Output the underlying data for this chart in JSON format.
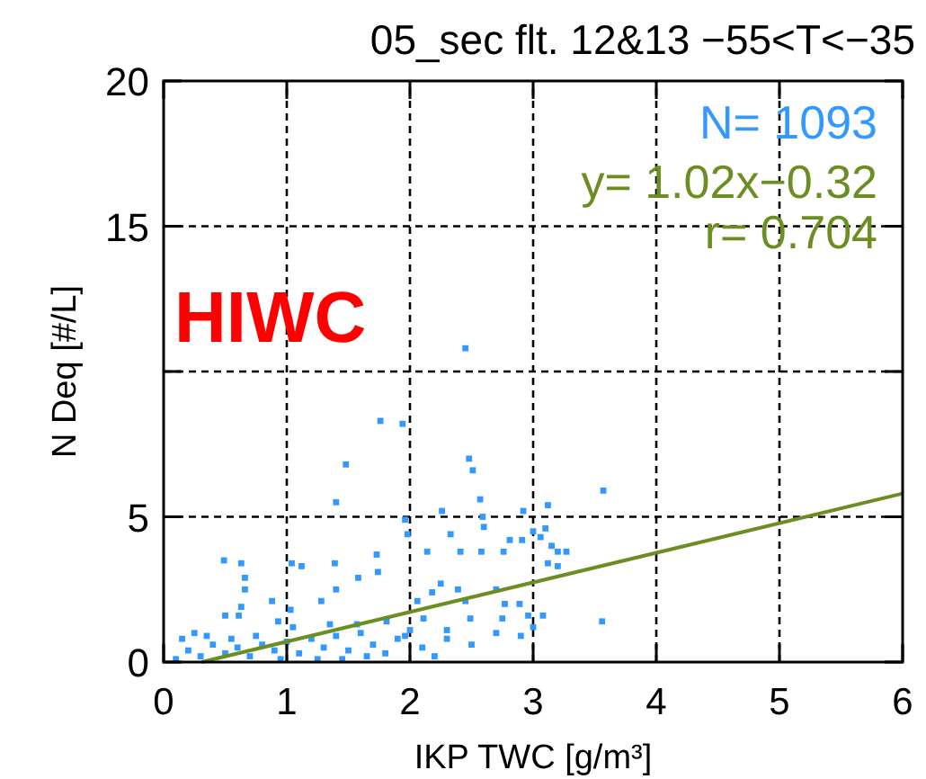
{
  "chart_data": {
    "type": "scatter",
    "title": "05_sec flt. 12&13 −55<T<−35",
    "xlabel": "IKP TWC [g/m³]",
    "ylabel": "N Deq [#/L]",
    "annotations": [
      "N=  1093",
      "y= 1.02x−0.32",
      "r= 0.704",
      "HIWC"
    ],
    "xlim": [
      0,
      6
    ],
    "ylim": [
      0,
      20
    ],
    "xticks": [
      0,
      1,
      2,
      3,
      4,
      5,
      6
    ],
    "yticks": [
      0,
      5,
      {
        "value": 10,
        "label": null
      },
      15,
      20
    ],
    "grid": true,
    "series": [
      {
        "marker": "square",
        "color": "#3399ff",
        "x": [
          2.45,
          1.76,
          1.94,
          1.48,
          2.48,
          2.51,
          1.4,
          3.57,
          2.57,
          2.26,
          3.12,
          2.92,
          1.96,
          2.59,
          2.6,
          1.98,
          2.33,
          2.81,
          2.91,
          3.06,
          3.2,
          3.27,
          1.73,
          2.14,
          2.41,
          2.58,
          2.76,
          1.04,
          1.12,
          1.39,
          1.74,
          1.58,
          3.12,
          1.4,
          1.28,
          0.88,
          0.49,
          0.63,
          0.66,
          0.66,
          0.63,
          0.5,
          0.61,
          0.93,
          0.25,
          1.03,
          2.06,
          2.11,
          2.7,
          2.77,
          2.89,
          2.96,
          3.08,
          3.56,
          2.75,
          2.3,
          2.49,
          2.39,
          2.25,
          2.45,
          2.18,
          1.81,
          1.57,
          1.96,
          0.1,
          0.2,
          0.3,
          0.4,
          0.5,
          0.6,
          0.7,
          0.8,
          0.9,
          1.0,
          1.1,
          1.2,
          1.3,
          1.4,
          1.5,
          1.6,
          1.7,
          1.8,
          1.9,
          2.0,
          2.1,
          2.2,
          2.3,
          2.5,
          2.7,
          2.9,
          3.0,
          0.15,
          0.35,
          0.55,
          0.75,
          0.95,
          1.25,
          1.45,
          1.65,
          1.05,
          1.35,
          3.1,
          3.0,
          3.15,
          3.2
        ],
        "values": [
          10.8,
          8.3,
          8.2,
          6.8,
          7.0,
          6.6,
          5.5,
          5.9,
          5.6,
          5.2,
          5.4,
          5.2,
          4.9,
          5.0,
          4.65,
          4.4,
          4.4,
          4.2,
          4.2,
          4.3,
          3.8,
          3.8,
          3.7,
          3.8,
          3.8,
          3.8,
          3.8,
          3.4,
          3.3,
          3.4,
          3.1,
          2.9,
          3.4,
          2.5,
          2.1,
          2.1,
          3.5,
          3.4,
          2.9,
          2.5,
          1.9,
          1.6,
          1.6,
          1.4,
          1.0,
          1.8,
          2.1,
          1.5,
          2.5,
          2.0,
          2.0,
          1.6,
          1.6,
          1.4,
          1.5,
          1.1,
          1.5,
          2.5,
          2.7,
          2.1,
          2.4,
          1.4,
          1.3,
          0.9,
          0.1,
          0.4,
          0.2,
          0.6,
          0.3,
          0.5,
          0.2,
          0.6,
          0.4,
          0.7,
          0.3,
          0.8,
          0.5,
          0.9,
          0.4,
          1.0,
          0.6,
          0.3,
          0.8,
          1.1,
          0.5,
          0.2,
          0.8,
          0.6,
          1.0,
          0.9,
          1.2,
          0.8,
          0.9,
          0.8,
          0.9,
          0.1,
          0.1,
          0.1,
          0.2,
          1.2,
          1.3,
          4.6,
          4.5,
          4.0,
          3.3
        ]
      },
      {
        "type": "line",
        "color": "#6b8e23",
        "x": [
          0.31,
          6
        ],
        "values": [
          0,
          5.8
        ]
      }
    ]
  }
}
